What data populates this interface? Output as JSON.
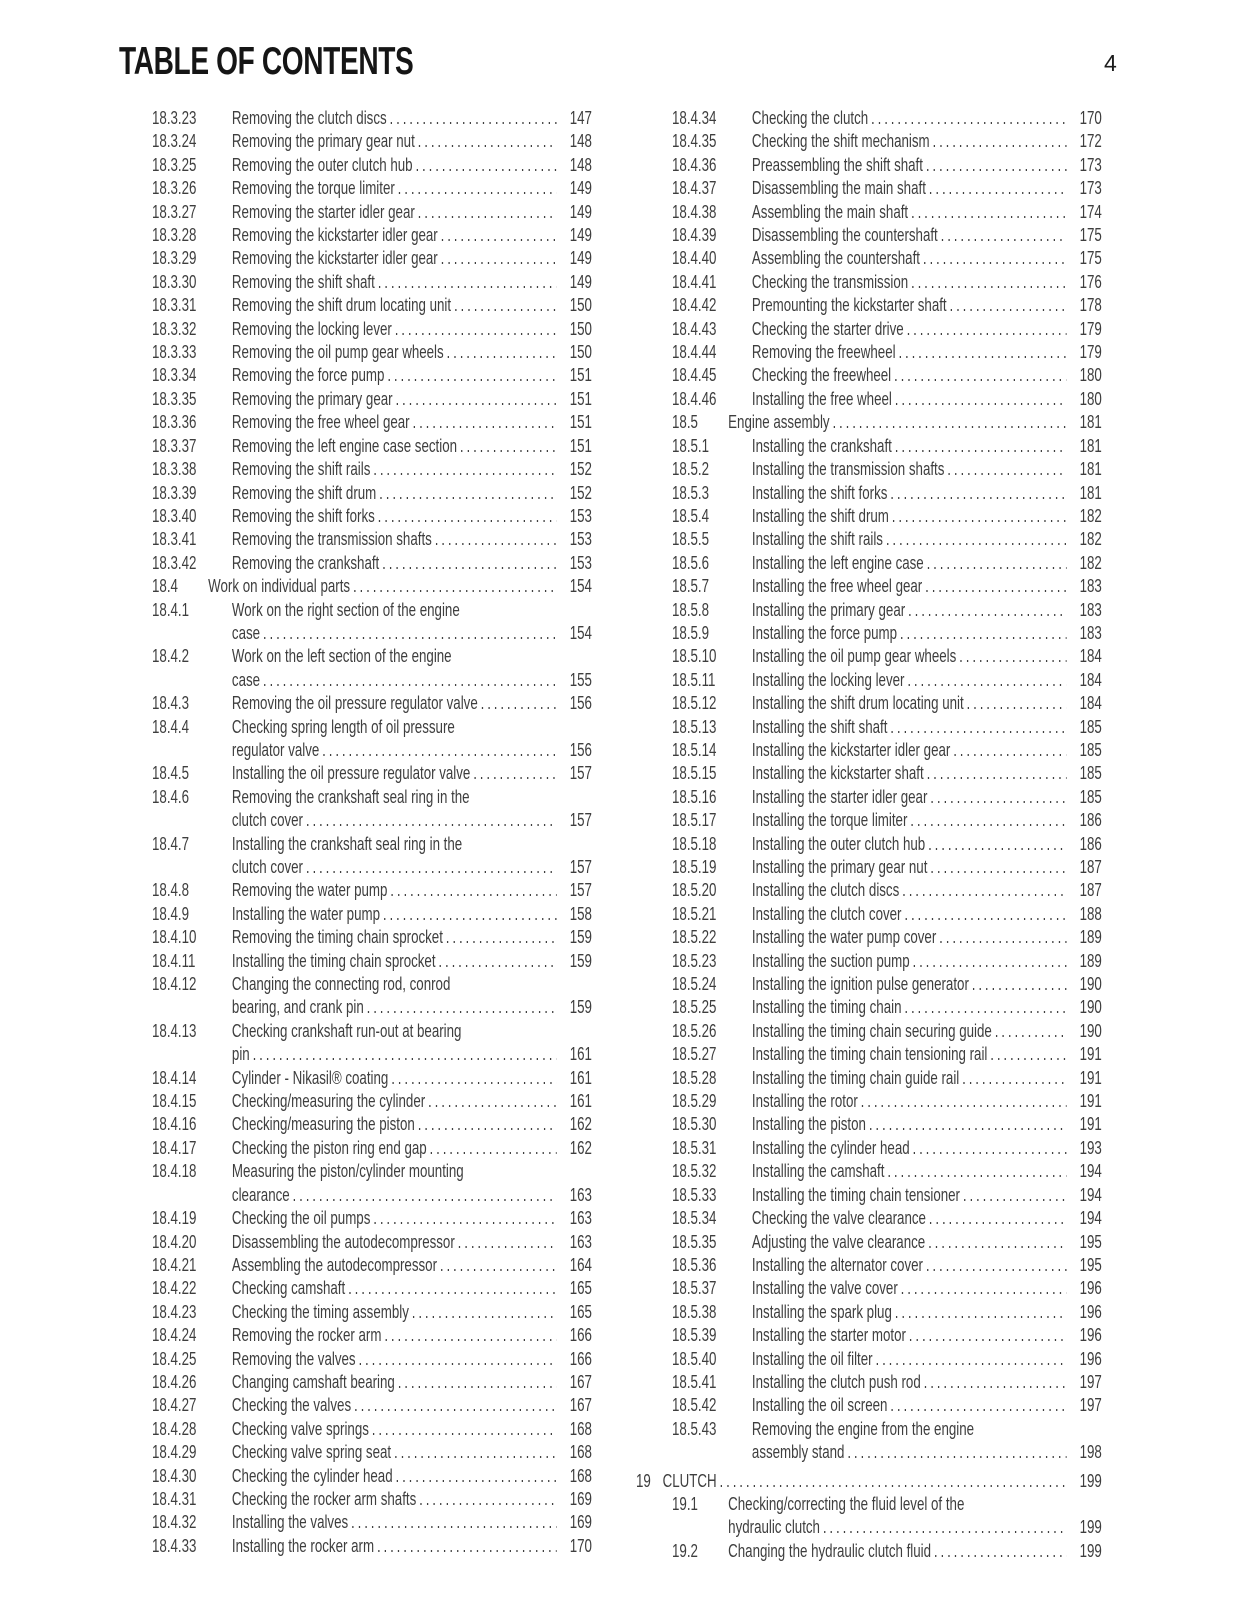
{
  "header": {
    "title": "TABLE OF CONTENTS",
    "page_number": "4"
  },
  "toc": {
    "left_column": [
      {
        "num": "18.3.23",
        "level": "sub",
        "lines": [
          "Removing the clutch discs"
        ],
        "page": "147"
      },
      {
        "num": "18.3.24",
        "level": "sub",
        "lines": [
          "Removing the primary gear nut"
        ],
        "page": "148"
      },
      {
        "num": "18.3.25",
        "level": "sub",
        "lines": [
          "Removing the outer clutch hub"
        ],
        "page": "148"
      },
      {
        "num": "18.3.26",
        "level": "sub",
        "lines": [
          "Removing the torque limiter"
        ],
        "page": "149"
      },
      {
        "num": "18.3.27",
        "level": "sub",
        "lines": [
          "Removing the starter idler gear"
        ],
        "page": "149"
      },
      {
        "num": "18.3.28",
        "level": "sub",
        "lines": [
          "Removing the kickstarter idler gear"
        ],
        "page": "149"
      },
      {
        "num": "18.3.29",
        "level": "sub",
        "lines": [
          "Removing the kickstarter idler gear"
        ],
        "page": "149"
      },
      {
        "num": "18.3.30",
        "level": "sub",
        "lines": [
          "Removing the shift shaft"
        ],
        "page": "149"
      },
      {
        "num": "18.3.31",
        "level": "sub",
        "lines": [
          "Removing the shift drum locating unit"
        ],
        "page": "150"
      },
      {
        "num": "18.3.32",
        "level": "sub",
        "lines": [
          "Removing the locking lever"
        ],
        "page": "150"
      },
      {
        "num": "18.3.33",
        "level": "sub",
        "lines": [
          "Removing the oil pump gear wheels"
        ],
        "page": "150"
      },
      {
        "num": "18.3.34",
        "level": "sub",
        "lines": [
          "Removing the force pump"
        ],
        "page": "151"
      },
      {
        "num": "18.3.35",
        "level": "sub",
        "lines": [
          "Removing the primary gear"
        ],
        "page": "151"
      },
      {
        "num": "18.3.36",
        "level": "sub",
        "lines": [
          "Removing the free wheel gear"
        ],
        "page": "151"
      },
      {
        "num": "18.3.37",
        "level": "sub",
        "lines": [
          "Removing the left engine case section"
        ],
        "page": "151"
      },
      {
        "num": "18.3.38",
        "level": "sub",
        "lines": [
          "Removing the shift rails"
        ],
        "page": "152"
      },
      {
        "num": "18.3.39",
        "level": "sub",
        "lines": [
          "Removing the shift drum"
        ],
        "page": "152"
      },
      {
        "num": "18.3.40",
        "level": "sub",
        "lines": [
          "Removing the shift forks"
        ],
        "page": "153"
      },
      {
        "num": "18.3.41",
        "level": "sub",
        "lines": [
          "Removing the transmission shafts"
        ],
        "page": "153"
      },
      {
        "num": "18.3.42",
        "level": "sub",
        "lines": [
          "Removing the crankshaft"
        ],
        "page": "153"
      },
      {
        "num": "18.4",
        "level": "section",
        "lines": [
          "Work on individual parts"
        ],
        "page": "154"
      },
      {
        "num": "18.4.1",
        "level": "sub",
        "lines": [
          "Work on the right section of the engine",
          "case"
        ],
        "page": "154"
      },
      {
        "num": "18.4.2",
        "level": "sub",
        "lines": [
          "Work on the left section of the engine",
          "case"
        ],
        "page": "155"
      },
      {
        "num": "18.4.3",
        "level": "sub",
        "lines": [
          "Removing the oil pressure regulator valve"
        ],
        "page": "156"
      },
      {
        "num": "18.4.4",
        "level": "sub",
        "lines": [
          "Checking spring length of oil pressure",
          "regulator valve"
        ],
        "page": "156"
      },
      {
        "num": "18.4.5",
        "level": "sub",
        "lines": [
          "Installing the oil pressure regulator valve"
        ],
        "page": "157"
      },
      {
        "num": "18.4.6",
        "level": "sub",
        "lines": [
          "Removing the crankshaft seal ring in the",
          "clutch cover"
        ],
        "page": "157"
      },
      {
        "num": "18.4.7",
        "level": "sub",
        "lines": [
          "Installing the crankshaft seal ring in the",
          "clutch cover"
        ],
        "page": "157"
      },
      {
        "num": "18.4.8",
        "level": "sub",
        "lines": [
          "Removing the water pump"
        ],
        "page": "157"
      },
      {
        "num": "18.4.9",
        "level": "sub",
        "lines": [
          "Installing the water pump"
        ],
        "page": "158"
      },
      {
        "num": "18.4.10",
        "level": "sub",
        "lines": [
          "Removing the timing chain sprocket"
        ],
        "page": "159"
      },
      {
        "num": "18.4.11",
        "level": "sub",
        "lines": [
          "Installing the timing chain sprocket"
        ],
        "page": "159"
      },
      {
        "num": "18.4.12",
        "level": "sub",
        "lines": [
          "Changing the connecting rod, conrod",
          "bearing, and crank pin"
        ],
        "page": "159"
      },
      {
        "num": "18.4.13",
        "level": "sub",
        "lines": [
          "Checking crankshaft run-out at bearing",
          "pin"
        ],
        "page": "161"
      },
      {
        "num": "18.4.14",
        "level": "sub",
        "lines": [
          "Cylinder - Nikasil® coating"
        ],
        "page": "161"
      },
      {
        "num": "18.4.15",
        "level": "sub",
        "lines": [
          "Checking/measuring the cylinder"
        ],
        "page": "161"
      },
      {
        "num": "18.4.16",
        "level": "sub",
        "lines": [
          "Checking/measuring the piston"
        ],
        "page": "162"
      },
      {
        "num": "18.4.17",
        "level": "sub",
        "lines": [
          "Checking the piston ring end gap"
        ],
        "page": "162"
      },
      {
        "num": "18.4.18",
        "level": "sub",
        "lines": [
          "Measuring the piston/cylinder mounting",
          "clearance"
        ],
        "page": "163"
      },
      {
        "num": "18.4.19",
        "level": "sub",
        "lines": [
          "Checking the oil pumps"
        ],
        "page": "163"
      },
      {
        "num": "18.4.20",
        "level": "sub",
        "lines": [
          "Disassembling the autodecompressor"
        ],
        "page": "163"
      },
      {
        "num": "18.4.21",
        "level": "sub",
        "lines": [
          "Assembling the autodecompressor"
        ],
        "page": "164"
      },
      {
        "num": "18.4.22",
        "level": "sub",
        "lines": [
          "Checking camshaft"
        ],
        "page": "165"
      },
      {
        "num": "18.4.23",
        "level": "sub",
        "lines": [
          "Checking the timing assembly"
        ],
        "page": "165"
      },
      {
        "num": "18.4.24",
        "level": "sub",
        "lines": [
          "Removing the rocker arm"
        ],
        "page": "166"
      },
      {
        "num": "18.4.25",
        "level": "sub",
        "lines": [
          "Removing the valves"
        ],
        "page": "166"
      },
      {
        "num": "18.4.26",
        "level": "sub",
        "lines": [
          "Changing camshaft bearing"
        ],
        "page": "167"
      },
      {
        "num": "18.4.27",
        "level": "sub",
        "lines": [
          "Checking the valves"
        ],
        "page": "167"
      },
      {
        "num": "18.4.28",
        "level": "sub",
        "lines": [
          "Checking valve springs"
        ],
        "page": "168"
      },
      {
        "num": "18.4.29",
        "level": "sub",
        "lines": [
          "Checking valve spring seat"
        ],
        "page": "168"
      },
      {
        "num": "18.4.30",
        "level": "sub",
        "lines": [
          "Checking the cylinder head"
        ],
        "page": "168"
      },
      {
        "num": "18.4.31",
        "level": "sub",
        "lines": [
          "Checking the rocker arm shafts"
        ],
        "page": "169"
      },
      {
        "num": "18.4.32",
        "level": "sub",
        "lines": [
          "Installing the valves"
        ],
        "page": "169"
      },
      {
        "num": "18.4.33",
        "level": "sub",
        "lines": [
          "Installing the rocker arm"
        ],
        "page": "170"
      }
    ],
    "right_column": [
      {
        "num": "18.4.34",
        "level": "sub",
        "lines": [
          "Checking the clutch"
        ],
        "page": "170"
      },
      {
        "num": "18.4.35",
        "level": "sub",
        "lines": [
          "Checking the shift mechanism"
        ],
        "page": "172"
      },
      {
        "num": "18.4.36",
        "level": "sub",
        "lines": [
          "Preassembling the shift shaft"
        ],
        "page": "173"
      },
      {
        "num": "18.4.37",
        "level": "sub",
        "lines": [
          "Disassembling the main shaft"
        ],
        "page": "173"
      },
      {
        "num": "18.4.38",
        "level": "sub",
        "lines": [
          "Assembling the main shaft"
        ],
        "page": "174"
      },
      {
        "num": "18.4.39",
        "level": "sub",
        "lines": [
          "Disassembling the countershaft"
        ],
        "page": "175"
      },
      {
        "num": "18.4.40",
        "level": "sub",
        "lines": [
          "Assembling the countershaft"
        ],
        "page": "175"
      },
      {
        "num": "18.4.41",
        "level": "sub",
        "lines": [
          "Checking the transmission"
        ],
        "page": "176"
      },
      {
        "num": "18.4.42",
        "level": "sub",
        "lines": [
          "Premounting the kickstarter shaft"
        ],
        "page": "178"
      },
      {
        "num": "18.4.43",
        "level": "sub",
        "lines": [
          "Checking the starter drive"
        ],
        "page": "179"
      },
      {
        "num": "18.4.44",
        "level": "sub",
        "lines": [
          "Removing the freewheel"
        ],
        "page": "179"
      },
      {
        "num": "18.4.45",
        "level": "sub",
        "lines": [
          "Checking the freewheel"
        ],
        "page": "180"
      },
      {
        "num": "18.4.46",
        "level": "sub",
        "lines": [
          "Installing the free wheel"
        ],
        "page": "180"
      },
      {
        "num": "18.5",
        "level": "section",
        "lines": [
          "Engine assembly"
        ],
        "page": "181"
      },
      {
        "num": "18.5.1",
        "level": "sub",
        "lines": [
          "Installing the crankshaft"
        ],
        "page": "181"
      },
      {
        "num": "18.5.2",
        "level": "sub",
        "lines": [
          "Installing the transmission shafts"
        ],
        "page": "181"
      },
      {
        "num": "18.5.3",
        "level": "sub",
        "lines": [
          "Installing the shift forks"
        ],
        "page": "181"
      },
      {
        "num": "18.5.4",
        "level": "sub",
        "lines": [
          "Installing the shift drum"
        ],
        "page": "182"
      },
      {
        "num": "18.5.5",
        "level": "sub",
        "lines": [
          "Installing the shift rails"
        ],
        "page": "182"
      },
      {
        "num": "18.5.6",
        "level": "sub",
        "lines": [
          "Installing the left engine case"
        ],
        "page": "182"
      },
      {
        "num": "18.5.7",
        "level": "sub",
        "lines": [
          "Installing the free wheel gear"
        ],
        "page": "183"
      },
      {
        "num": "18.5.8",
        "level": "sub",
        "lines": [
          "Installing the primary gear"
        ],
        "page": "183"
      },
      {
        "num": "18.5.9",
        "level": "sub",
        "lines": [
          "Installing the force pump"
        ],
        "page": "183"
      },
      {
        "num": "18.5.10",
        "level": "sub",
        "lines": [
          "Installing the oil pump gear wheels"
        ],
        "page": "184"
      },
      {
        "num": "18.5.11",
        "level": "sub",
        "lines": [
          "Installing the locking lever"
        ],
        "page": "184"
      },
      {
        "num": "18.5.12",
        "level": "sub",
        "lines": [
          "Installing the shift drum locating unit"
        ],
        "page": "184"
      },
      {
        "num": "18.5.13",
        "level": "sub",
        "lines": [
          "Installing the shift shaft"
        ],
        "page": "185"
      },
      {
        "num": "18.5.14",
        "level": "sub",
        "lines": [
          "Installing the kickstarter idler gear"
        ],
        "page": "185"
      },
      {
        "num": "18.5.15",
        "level": "sub",
        "lines": [
          "Installing the kickstarter shaft"
        ],
        "page": "185"
      },
      {
        "num": "18.5.16",
        "level": "sub",
        "lines": [
          "Installing the starter idler gear"
        ],
        "page": "185"
      },
      {
        "num": "18.5.17",
        "level": "sub",
        "lines": [
          "Installing the torque limiter"
        ],
        "page": "186"
      },
      {
        "num": "18.5.18",
        "level": "sub",
        "lines": [
          "Installing the outer clutch hub"
        ],
        "page": "186"
      },
      {
        "num": "18.5.19",
        "level": "sub",
        "lines": [
          "Installing the primary gear nut"
        ],
        "page": "187"
      },
      {
        "num": "18.5.20",
        "level": "sub",
        "lines": [
          "Installing the clutch discs"
        ],
        "page": "187"
      },
      {
        "num": "18.5.21",
        "level": "sub",
        "lines": [
          "Installing the clutch cover"
        ],
        "page": "188"
      },
      {
        "num": "18.5.22",
        "level": "sub",
        "lines": [
          "Installing the water pump cover"
        ],
        "page": "189"
      },
      {
        "num": "18.5.23",
        "level": "sub",
        "lines": [
          "Installing the suction pump"
        ],
        "page": "189"
      },
      {
        "num": "18.5.24",
        "level": "sub",
        "lines": [
          "Installing the ignition pulse generator"
        ],
        "page": "190"
      },
      {
        "num": "18.5.25",
        "level": "sub",
        "lines": [
          "Installing the timing chain"
        ],
        "page": "190"
      },
      {
        "num": "18.5.26",
        "level": "sub",
        "lines": [
          "Installing the timing chain securing guide"
        ],
        "page": "190"
      },
      {
        "num": "18.5.27",
        "level": "sub",
        "lines": [
          "Installing the timing chain tensioning rail"
        ],
        "page": "191"
      },
      {
        "num": "18.5.28",
        "level": "sub",
        "lines": [
          "Installing the timing chain guide rail"
        ],
        "page": "191"
      },
      {
        "num": "18.5.29",
        "level": "sub",
        "lines": [
          "Installing the rotor"
        ],
        "page": "191"
      },
      {
        "num": "18.5.30",
        "level": "sub",
        "lines": [
          "Installing the piston"
        ],
        "page": "191"
      },
      {
        "num": "18.5.31",
        "level": "sub",
        "lines": [
          "Installing the cylinder head"
        ],
        "page": "193"
      },
      {
        "num": "18.5.32",
        "level": "sub",
        "lines": [
          "Installing the camshaft"
        ],
        "page": "194"
      },
      {
        "num": "18.5.33",
        "level": "sub",
        "lines": [
          "Installing the timing chain tensioner"
        ],
        "page": "194"
      },
      {
        "num": "18.5.34",
        "level": "sub",
        "lines": [
          "Checking the valve clearance"
        ],
        "page": "194"
      },
      {
        "num": "18.5.35",
        "level": "sub",
        "lines": [
          "Adjusting the valve clearance"
        ],
        "page": "195"
      },
      {
        "num": "18.5.36",
        "level": "sub",
        "lines": [
          "Installing the alternator cover"
        ],
        "page": "195"
      },
      {
        "num": "18.5.37",
        "level": "sub",
        "lines": [
          "Installing the valve cover"
        ],
        "page": "196"
      },
      {
        "num": "18.5.38",
        "level": "sub",
        "lines": [
          "Installing the spark plug"
        ],
        "page": "196"
      },
      {
        "num": "18.5.39",
        "level": "sub",
        "lines": [
          "Installing the starter motor"
        ],
        "page": "196"
      },
      {
        "num": "18.5.40",
        "level": "sub",
        "lines": [
          "Installing the oil filter"
        ],
        "page": "196"
      },
      {
        "num": "18.5.41",
        "level": "sub",
        "lines": [
          "Installing the clutch push rod"
        ],
        "page": "197"
      },
      {
        "num": "18.5.42",
        "level": "sub",
        "lines": [
          "Installing the oil screen"
        ],
        "page": "197"
      },
      {
        "num": "18.5.43",
        "level": "sub",
        "lines": [
          "Removing the engine from the engine",
          "assembly stand"
        ],
        "page": "198"
      },
      {
        "num": "19",
        "level": "chapter",
        "lines": [
          "CLUTCH"
        ],
        "page": "199"
      },
      {
        "num": "19.1",
        "level": "section",
        "lines": [
          "Checking/correcting the fluid level of the",
          "hydraulic clutch"
        ],
        "page": "199"
      },
      {
        "num": "19.2",
        "level": "section",
        "lines": [
          "Changing the hydraulic clutch fluid"
        ],
        "page": "199"
      }
    ]
  }
}
